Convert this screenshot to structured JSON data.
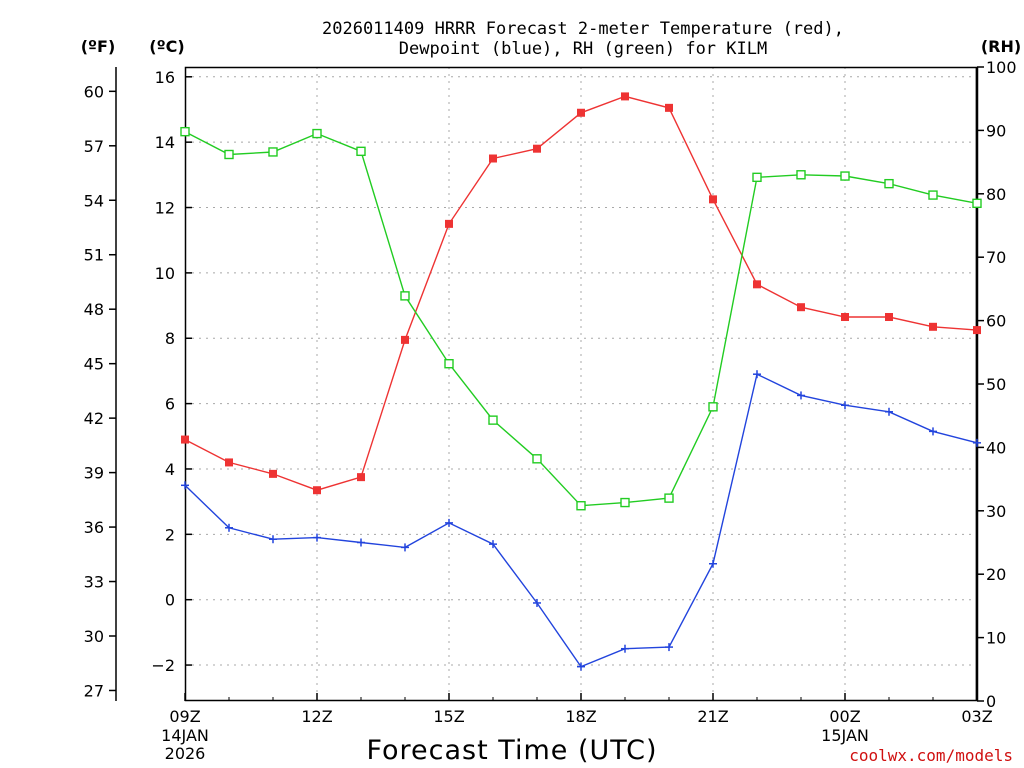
{
  "title": {
    "line1": "2026011409 HRRR Forecast 2-meter Temperature (red),",
    "line2": "Dewpoint (blue), RH (green) for KILM"
  },
  "axes": {
    "f_unit": "(ºF)",
    "c_unit": "(ºC)",
    "rh_unit": "(RH)",
    "f_ticks": [
      "27",
      "30",
      "33",
      "36",
      "39",
      "42",
      "45",
      "48",
      "51",
      "54",
      "57",
      "60"
    ],
    "c_ticks": [
      "−2",
      "0",
      "2",
      "4",
      "6",
      "8",
      "10",
      "12",
      "14",
      "16"
    ],
    "rh_ticks": [
      "0",
      "10",
      "20",
      "30",
      "40",
      "50",
      "60",
      "70",
      "80",
      "90",
      "100"
    ],
    "x_ticks": [
      {
        "label": "09Z",
        "sub1": "14JAN",
        "sub2": "2026"
      },
      {
        "label": "12Z",
        "sub1": "",
        "sub2": ""
      },
      {
        "label": "15Z",
        "sub1": "",
        "sub2": ""
      },
      {
        "label": "18Z",
        "sub1": "",
        "sub2": ""
      },
      {
        "label": "21Z",
        "sub1": "",
        "sub2": ""
      },
      {
        "label": "00Z",
        "sub1": "15JAN",
        "sub2": ""
      },
      {
        "label": "03Z",
        "sub1": "",
        "sub2": ""
      }
    ],
    "xlabel": "Forecast Time (UTC)"
  },
  "credit": "coolwx.com/models",
  "colors": {
    "temperature": "#ee3333",
    "dewpoint": "#2244dd",
    "rh": "#22cc22",
    "grid": "#a8a8a8"
  },
  "chart_data": {
    "type": "line",
    "x": [
      "09Z",
      "10Z",
      "11Z",
      "12Z",
      "13Z",
      "14Z",
      "15Z",
      "16Z",
      "17Z",
      "18Z",
      "19Z",
      "20Z",
      "21Z",
      "22Z",
      "23Z",
      "00Z",
      "01Z",
      "02Z",
      "03Z"
    ],
    "series": [
      {
        "name": "Temperature",
        "axis": "C",
        "marker": "filled-square",
        "values": [
          4.9,
          4.2,
          3.85,
          3.35,
          3.75,
          7.95,
          11.5,
          13.5,
          13.8,
          14.9,
          15.4,
          15.05,
          12.25,
          9.65,
          8.95,
          8.65,
          8.65,
          8.35,
          8.25
        ]
      },
      {
        "name": "Dewpoint",
        "axis": "C",
        "marker": "plus",
        "values": [
          3.5,
          2.2,
          1.85,
          1.9,
          1.75,
          1.6,
          2.35,
          1.7,
          -0.1,
          -2.05,
          -1.5,
          -1.45,
          1.1,
          6.9,
          6.25,
          5.95,
          5.75,
          5.15,
          4.8
        ]
      },
      {
        "name": "RH",
        "axis": "RH",
        "marker": "open-square",
        "values": [
          89.8,
          86.2,
          86.6,
          89.5,
          86.7,
          63.9,
          53.2,
          44.3,
          38.2,
          30.8,
          31.3,
          32.0,
          46.4,
          82.6,
          83.0,
          82.8,
          81.6,
          79.8,
          78.5
        ]
      }
    ],
    "c_range": [
      -3.1,
      16.3
    ],
    "f_range": [
      26.42,
      61.34
    ],
    "rh_range": [
      0,
      100
    ],
    "grid": true
  }
}
